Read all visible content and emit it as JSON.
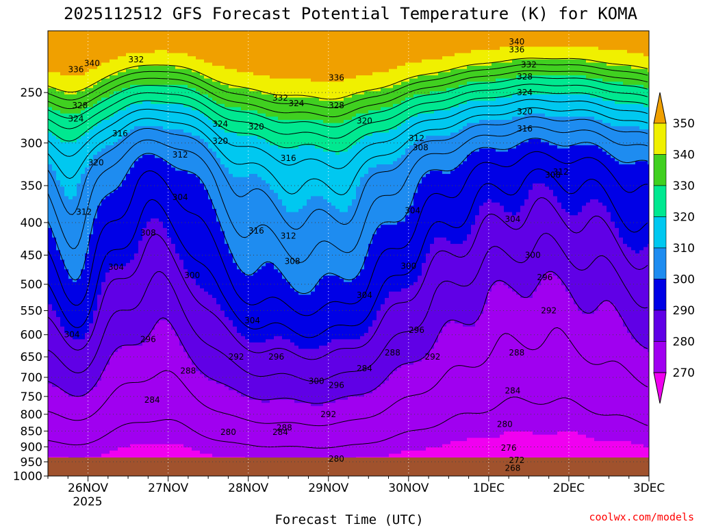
{
  "chart_data": {
    "type": "heatmap",
    "title": "2025112512 GFS Forecast Potential Temperature (K) for KOMA",
    "xlabel": "Forecast Time (UTC)",
    "ylabel": "",
    "credit": "coolwx.com/models",
    "x_ticks": [
      "26NOV",
      "27NOV",
      "28NOV",
      "29NOV",
      "30NOV",
      "1DEC",
      "2DEC",
      "3DEC"
    ],
    "x_subtick": "2025",
    "x_range_days": [
      -0.5,
      7.0
    ],
    "y_ticks": [
      250,
      300,
      350,
      400,
      450,
      500,
      550,
      600,
      650,
      700,
      750,
      800,
      850,
      900,
      950,
      1000
    ],
    "y_range_hpa": [
      200,
      1000
    ],
    "y_scale": "log-pressure",
    "grid": true,
    "colorbar": {
      "ticks": [
        350,
        340,
        330,
        320,
        310,
        300,
        290,
        280,
        270
      ],
      "colors": [
        "#f0a000",
        "#f0f000",
        "#40d020",
        "#00e890",
        "#00c8f0",
        "#1e8cf0",
        "#0000e6",
        "#6000e6",
        "#a000f0",
        "#f000f0"
      ]
    },
    "contour_levels": [
      268,
      272,
      276,
      280,
      284,
      288,
      292,
      296,
      300,
      304,
      308,
      312,
      316,
      320,
      324,
      328,
      332,
      336,
      340
    ],
    "contour_labels": [
      {
        "t": -0.2,
        "p": 600,
        "v": "304"
      },
      {
        "t": -0.15,
        "p": 275,
        "v": "324"
      },
      {
        "t": -0.1,
        "p": 262,
        "v": "328"
      },
      {
        "t": -0.15,
        "p": 230,
        "v": "336"
      },
      {
        "t": 0.05,
        "p": 225,
        "v": "340"
      },
      {
        "t": 0.6,
        "p": 222,
        "v": "332"
      },
      {
        "t": -0.05,
        "p": 385,
        "v": "312"
      },
      {
        "t": 0.1,
        "p": 322,
        "v": "320"
      },
      {
        "t": 0.4,
        "p": 290,
        "v": "316"
      },
      {
        "t": 0.75,
        "p": 415,
        "v": "308"
      },
      {
        "t": 0.35,
        "p": 470,
        "v": "304"
      },
      {
        "t": 0.75,
        "p": 610,
        "v": "296"
      },
      {
        "t": 0.8,
        "p": 760,
        "v": "284"
      },
      {
        "t": 1.15,
        "p": 313,
        "v": "312"
      },
      {
        "t": 1.15,
        "p": 365,
        "v": "304"
      },
      {
        "t": 1.3,
        "p": 484,
        "v": "300"
      },
      {
        "t": 1.25,
        "p": 684,
        "v": "288"
      },
      {
        "t": 1.65,
        "p": 280,
        "v": "324"
      },
      {
        "t": 1.65,
        "p": 298,
        "v": "320"
      },
      {
        "t": 1.75,
        "p": 853,
        "v": "280"
      },
      {
        "t": 1.85,
        "p": 650,
        "v": "292"
      },
      {
        "t": 2.35,
        "p": 650,
        "v": "296"
      },
      {
        "t": 2.1,
        "p": 283,
        "v": "320"
      },
      {
        "t": 2.1,
        "p": 412,
        "v": "316"
      },
      {
        "t": 2.5,
        "p": 420,
        "v": "312"
      },
      {
        "t": 2.5,
        "p": 317,
        "v": "316"
      },
      {
        "t": 2.05,
        "p": 570,
        "v": "304"
      },
      {
        "t": 2.4,
        "p": 853,
        "v": "284"
      },
      {
        "t": 2.45,
        "p": 840,
        "v": "288"
      },
      {
        "t": 2.55,
        "p": 460,
        "v": "308"
      },
      {
        "t": 2.6,
        "p": 260,
        "v": "324"
      },
      {
        "t": 2.85,
        "p": 710,
        "v": "300"
      },
      {
        "t": 3.1,
        "p": 720,
        "v": "296"
      },
      {
        "t": 3.0,
        "p": 800,
        "v": "292"
      },
      {
        "t": 3.1,
        "p": 940,
        "v": "280"
      },
      {
        "t": 3.45,
        "p": 520,
        "v": "304"
      },
      {
        "t": 3.45,
        "p": 678,
        "v": "284"
      },
      {
        "t": 3.8,
        "p": 640,
        "v": "288"
      },
      {
        "t": 4.0,
        "p": 468,
        "v": "300"
      },
      {
        "t": 4.05,
        "p": 383,
        "v": "304"
      },
      {
        "t": 4.15,
        "p": 305,
        "v": "308"
      },
      {
        "t": 4.1,
        "p": 295,
        "v": "312"
      },
      {
        "t": 4.3,
        "p": 650,
        "v": "292"
      },
      {
        "t": 4.1,
        "p": 590,
        "v": "296"
      },
      {
        "t": 3.1,
        "p": 262,
        "v": "328"
      },
      {
        "t": 3.1,
        "p": 237,
        "v": "336"
      },
      {
        "t": 2.4,
        "p": 255,
        "v": "332"
      },
      {
        "t": 3.45,
        "p": 277,
        "v": "320"
      },
      {
        "t": 5.45,
        "p": 268,
        "v": "320"
      },
      {
        "t": 5.45,
        "p": 250,
        "v": "324"
      },
      {
        "t": 5.45,
        "p": 236,
        "v": "328"
      },
      {
        "t": 5.5,
        "p": 226,
        "v": "332"
      },
      {
        "t": 5.35,
        "p": 214,
        "v": "336"
      },
      {
        "t": 5.35,
        "p": 208,
        "v": "340"
      },
      {
        "t": 5.45,
        "p": 285,
        "v": "316"
      },
      {
        "t": 5.9,
        "p": 333,
        "v": "312"
      },
      {
        "t": 5.8,
        "p": 337,
        "v": "308"
      },
      {
        "t": 5.3,
        "p": 395,
        "v": "304"
      },
      {
        "t": 5.55,
        "p": 450,
        "v": "300"
      },
      {
        "t": 5.7,
        "p": 488,
        "v": "296"
      },
      {
        "t": 5.75,
        "p": 550,
        "v": "292"
      },
      {
        "t": 5.35,
        "p": 640,
        "v": "288"
      },
      {
        "t": 5.3,
        "p": 735,
        "v": "284"
      },
      {
        "t": 5.2,
        "p": 830,
        "v": "280"
      },
      {
        "t": 5.25,
        "p": 903,
        "v": "276"
      },
      {
        "t": 5.35,
        "p": 945,
        "v": "272"
      },
      {
        "t": 5.3,
        "p": 972,
        "v": "268"
      }
    ]
  }
}
